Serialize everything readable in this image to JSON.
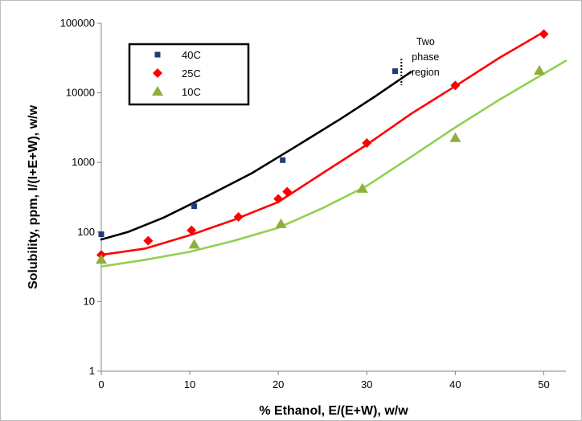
{
  "chart_data": {
    "type": "scatter",
    "xlabel": "% Ethanol, E/(E+W), w/w",
    "ylabel": "Solubility, ppm, I/(I+E+W), w/w",
    "xlim": [
      0,
      52.5
    ],
    "ylim": [
      1,
      100000
    ],
    "yscale": "log",
    "x_ticks": [
      0,
      10,
      20,
      30,
      40,
      50
    ],
    "y_ticks": [
      1,
      10,
      100,
      1000,
      10000,
      100000
    ],
    "grid": false,
    "legend_position": "top-left",
    "series": [
      {
        "name": "40C",
        "marker": "square",
        "color": "#1f3a7a",
        "points": [
          [
            0,
            93
          ],
          [
            10.5,
            235
          ],
          [
            20.5,
            1080
          ],
          [
            33.2,
            20500
          ]
        ],
        "fit": [
          [
            0,
            78
          ],
          [
            3,
            100
          ],
          [
            7,
            160
          ],
          [
            12,
            330
          ],
          [
            17,
            700
          ],
          [
            22,
            1700
          ],
          [
            27,
            4200
          ],
          [
            31,
            9000
          ],
          [
            35,
            20000
          ]
        ],
        "fit_color": "#000000"
      },
      {
        "name": "25C",
        "marker": "diamond",
        "color": "#ff0000",
        "points": [
          [
            0,
            47
          ],
          [
            5.3,
            75
          ],
          [
            10.2,
            106
          ],
          [
            15.5,
            165
          ],
          [
            20,
            300
          ],
          [
            21,
            380
          ],
          [
            30,
            1900
          ],
          [
            40,
            12800
          ],
          [
            50,
            70000
          ]
        ],
        "fit": [
          [
            0,
            47
          ],
          [
            5,
            58
          ],
          [
            10,
            90
          ],
          [
            15,
            150
          ],
          [
            20,
            270
          ],
          [
            25,
            700
          ],
          [
            30,
            1800
          ],
          [
            35,
            5000
          ],
          [
            40,
            12500
          ],
          [
            45,
            32000
          ],
          [
            50,
            75000
          ]
        ],
        "fit_color": "#ff0000"
      },
      {
        "name": "10C",
        "marker": "triangle",
        "color": "#8fae3b",
        "points": [
          [
            0,
            40
          ],
          [
            10.5,
            66
          ],
          [
            20.3,
            130
          ],
          [
            29.5,
            420
          ],
          [
            40,
            2250
          ],
          [
            49.5,
            20800
          ]
        ],
        "fit": [
          [
            0,
            32
          ],
          [
            5,
            40
          ],
          [
            10,
            52
          ],
          [
            15,
            75
          ],
          [
            20,
            115
          ],
          [
            25,
            220
          ],
          [
            30,
            460
          ],
          [
            35,
            1200
          ],
          [
            40,
            3200
          ],
          [
            45,
            8000
          ],
          [
            52.5,
            29000
          ]
        ],
        "fit_color": "#92d050"
      }
    ],
    "annotation": {
      "lines": [
        "Two",
        "phase",
        "region"
      ],
      "x": 35
    }
  }
}
